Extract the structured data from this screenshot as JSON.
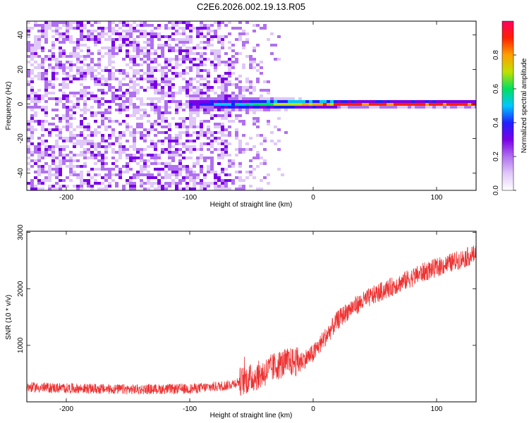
{
  "figure_title": "C2E6.2026.002.19.13.R05",
  "chart_data": [
    {
      "type": "heatmap",
      "title": "",
      "xlabel": "Height of straight line (km)",
      "ylabel": "Frequency (Hz)",
      "xlim": [
        -232,
        132
      ],
      "ylim": [
        -50,
        48
      ],
      "xticks": [
        -200,
        -100,
        0,
        100
      ],
      "yticks": [
        -40,
        -20,
        0,
        20,
        40
      ],
      "colorbar": {
        "label": "Normalized spectral amplitude",
        "range": [
          0,
          1
        ],
        "ticks": [
          0.0,
          0.2,
          0.4,
          0.6,
          0.8
        ],
        "tick_labels": [
          "0.0",
          "0.2",
          "0.4",
          "0.6",
          "0.8"
        ],
        "colormap": [
          "#ffffff",
          "#e0c8f8",
          "#b070f0",
          "#7a00e8",
          "#2020ff",
          "#00c8ff",
          "#00e060",
          "#c0e000",
          "#ffa000",
          "#ff2000",
          "#ff0060"
        ]
      },
      "features": {
        "noise_region_x": [
          -232,
          -20
        ],
        "carrier_frequency_hz": 0,
        "carrier_start_x": -100,
        "strong_carrier_x": [
          20,
          132
        ]
      }
    },
    {
      "type": "line",
      "title": "",
      "xlabel": "Height of straight line (km)",
      "ylabel": "SNR (10 * v/v)",
      "xlim": [
        -232,
        132
      ],
      "ylim": [
        0,
        3020
      ],
      "xticks": [
        -200,
        -100,
        0,
        100
      ],
      "yticks": [
        1000,
        2000,
        3000
      ],
      "series": [
        {
          "color": "#ee3333",
          "x": [
            -232,
            -200,
            -150,
            -100,
            -70,
            -50,
            -40,
            -30,
            -20,
            -10,
            0,
            10,
            20,
            30,
            50,
            70,
            90,
            110,
            132
          ],
          "values": [
            260,
            240,
            220,
            230,
            290,
            420,
            510,
            640,
            700,
            720,
            850,
            1150,
            1450,
            1650,
            1900,
            2100,
            2300,
            2450,
            2620
          ]
        }
      ]
    }
  ]
}
